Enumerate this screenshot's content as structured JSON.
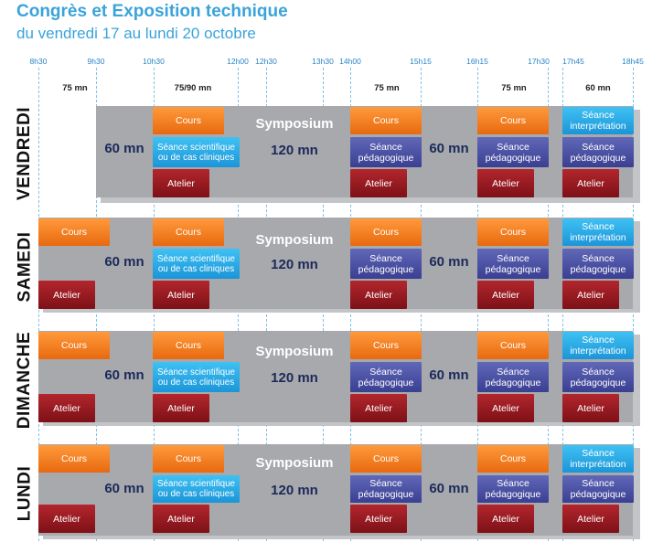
{
  "header": {
    "title": "Congrès et Exposition technique",
    "subtitle": "du vendredi 17 au lundi 20 octobre"
  },
  "times": [
    "8h30",
    "9h30",
    "10h30",
    "12h00",
    "12h30",
    "13h30",
    "14h00",
    "15h15",
    "16h15",
    "17h30",
    "17h45",
    "18h45"
  ],
  "durations": [
    "75 mn",
    "75/90 mn",
    "75 mn",
    "75 mn",
    "60 mn"
  ],
  "labels": {
    "cours": "Cours",
    "atelier": "Atelier",
    "symposium": "Symposium",
    "scient": "Séance scientifique ou de cas cliniques",
    "peda": "Séance pédagogique",
    "interp": "Séance interprétation",
    "d60": "60 mn",
    "d120": "120 mn"
  },
  "days": [
    {
      "name": "VENDREDI"
    },
    {
      "name": "SAMEDI"
    },
    {
      "name": "DIMANCHE"
    },
    {
      "name": "LUNDI"
    }
  ],
  "colors": {
    "title": "#3aa3d9",
    "cours": "#f27d1f",
    "atelier": "#991b22",
    "peda": "#4a50a3",
    "interp": "#2aaae6",
    "gray": "#a8a9ad"
  }
}
